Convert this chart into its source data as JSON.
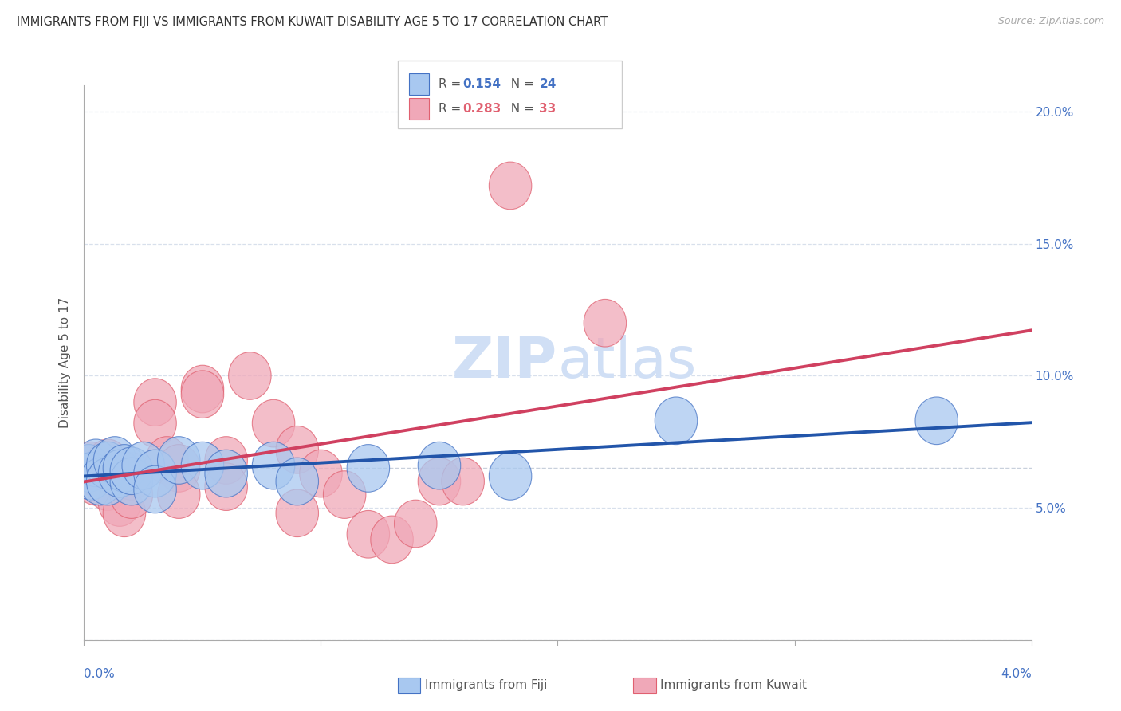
{
  "title": "IMMIGRANTS FROM FIJI VS IMMIGRANTS FROM KUWAIT DISABILITY AGE 5 TO 17 CORRELATION CHART",
  "source": "Source: ZipAtlas.com",
  "ylabel": "Disability Age 5 to 17",
  "xlim": [
    0.0,
    0.04
  ],
  "ylim": [
    0.0,
    0.21
  ],
  "legend_fiji_R": "0.154",
  "legend_fiji_N": "24",
  "legend_kuwait_R": "0.283",
  "legend_kuwait_N": "33",
  "fiji_color": "#a8c8f0",
  "kuwait_color": "#f0a8b8",
  "fiji_edge_color": "#4472c4",
  "kuwait_edge_color": "#e06070",
  "fiji_line_color": "#2255aa",
  "kuwait_line_color": "#d04060",
  "watermark_color": "#d0dff5",
  "grid_color": "#d8e0ec",
  "ref_line_color": "#c8d0dc",
  "background_color": "#ffffff",
  "fiji_scatter_x": [
    0.0002,
    0.0003,
    0.0005,
    0.0007,
    0.001,
    0.001,
    0.0013,
    0.0015,
    0.0017,
    0.002,
    0.002,
    0.0025,
    0.003,
    0.003,
    0.004,
    0.005,
    0.006,
    0.008,
    0.009,
    0.012,
    0.015,
    0.018,
    0.025,
    0.036
  ],
  "fiji_scatter_y": [
    0.065,
    0.062,
    0.067,
    0.06,
    0.066,
    0.06,
    0.068,
    0.063,
    0.065,
    0.06,
    0.064,
    0.066,
    0.063,
    0.057,
    0.068,
    0.066,
    0.063,
    0.066,
    0.06,
    0.065,
    0.066,
    0.062,
    0.083,
    0.083
  ],
  "kuwait_scatter_x": [
    0.0002,
    0.0003,
    0.0005,
    0.0007,
    0.001,
    0.001,
    0.0013,
    0.0015,
    0.0017,
    0.002,
    0.002,
    0.003,
    0.003,
    0.0035,
    0.004,
    0.004,
    0.005,
    0.005,
    0.006,
    0.006,
    0.007,
    0.008,
    0.009,
    0.009,
    0.01,
    0.011,
    0.012,
    0.013,
    0.014,
    0.015,
    0.016,
    0.018,
    0.022
  ],
  "kuwait_scatter_y": [
    0.064,
    0.066,
    0.06,
    0.062,
    0.067,
    0.058,
    0.063,
    0.052,
    0.048,
    0.062,
    0.055,
    0.09,
    0.082,
    0.068,
    0.065,
    0.055,
    0.095,
    0.093,
    0.068,
    0.058,
    0.1,
    0.082,
    0.072,
    0.048,
    0.063,
    0.055,
    0.04,
    0.038,
    0.044,
    0.06,
    0.06,
    0.172,
    0.12
  ],
  "y_tick_vals": [
    0.0,
    0.05,
    0.1,
    0.15,
    0.2
  ],
  "y_tick_labels_right": [
    "",
    "5.0%",
    "10.0%",
    "15.0%",
    "20.0%"
  ],
  "x_tick_vals": [
    0.0,
    0.01,
    0.02,
    0.03,
    0.04
  ]
}
